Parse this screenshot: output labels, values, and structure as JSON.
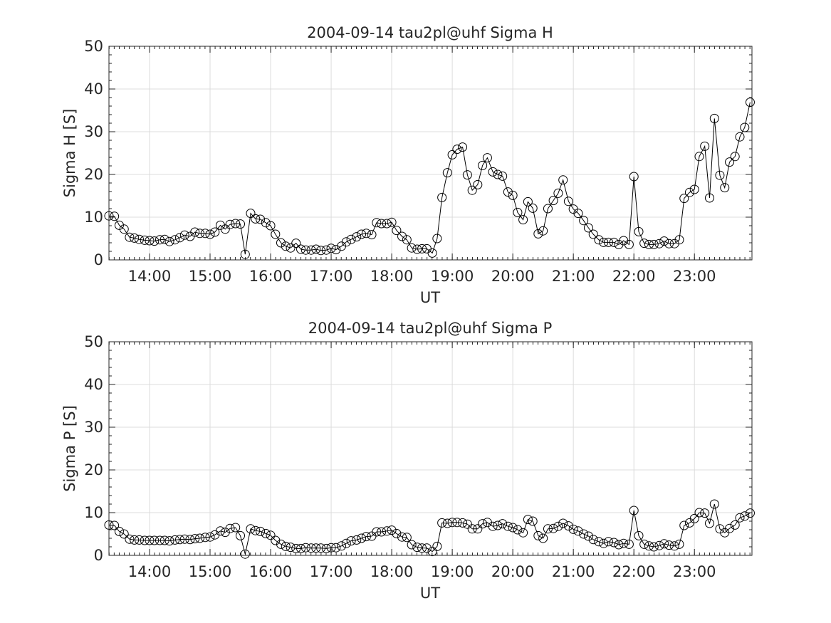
{
  "chart_data": [
    {
      "type": "line",
      "title": "2004-09-14  tau2pl@uhf Sigma H",
      "xlabel": "UT",
      "ylabel": "Sigma H [S]",
      "xlim": [
        13.33,
        23.95
      ],
      "ylim": [
        0,
        50
      ],
      "xticks": [
        14,
        15,
        16,
        17,
        18,
        19,
        20,
        21,
        22,
        23
      ],
      "xtick_labels": [
        "14:00",
        "15:00",
        "16:00",
        "17:00",
        "18:00",
        "19:00",
        "20:00",
        "21:00",
        "22:00",
        "23:00"
      ],
      "yticks": [
        0,
        10,
        20,
        30,
        40,
        50
      ],
      "grid": true,
      "marker": "open-circle",
      "line_color": "#000000",
      "series": [
        {
          "x": [
            13.33,
            13.42,
            13.5,
            13.58,
            13.67,
            13.75,
            13.83,
            13.92,
            14.0,
            14.08,
            14.17,
            14.25,
            14.33,
            14.42,
            14.5,
            14.58,
            14.67,
            14.75,
            14.83,
            14.92,
            15.0,
            15.08,
            15.17,
            15.25,
            15.33,
            15.42,
            15.5,
            15.58,
            15.67,
            15.75,
            15.83,
            15.92,
            16.0,
            16.08,
            16.17,
            16.25,
            16.33,
            16.42,
            16.5,
            16.58,
            16.67,
            16.75,
            16.83,
            16.92,
            17.0,
            17.08,
            17.17,
            17.25,
            17.33,
            17.42,
            17.5,
            17.58,
            17.67,
            17.75,
            17.83,
            17.92,
            18.0,
            18.08,
            18.17,
            18.25,
            18.33,
            18.42,
            18.5,
            18.58,
            18.67,
            18.75,
            18.83,
            18.92,
            19.0,
            19.08,
            19.17,
            19.25,
            19.33,
            19.42,
            19.5,
            19.58,
            19.67,
            19.75,
            19.83,
            19.92,
            20.0,
            20.08,
            20.17,
            20.25,
            20.33,
            20.42,
            20.5,
            20.58,
            20.67,
            20.75,
            20.83,
            20.92,
            21.0,
            21.08,
            21.17,
            21.25,
            21.33,
            21.42,
            21.5,
            21.58,
            21.67,
            21.75,
            21.83,
            21.92,
            22.0,
            22.08,
            22.17,
            22.25,
            22.33,
            22.42,
            22.5,
            22.58,
            22.67,
            22.75,
            22.83,
            22.92,
            23.0,
            23.08,
            23.17,
            23.25,
            23.33,
            23.42,
            23.5,
            23.58,
            23.67,
            23.75,
            23.83,
            23.92
          ],
          "values": [
            10.3,
            10.2,
            8.1,
            7.2,
            5.3,
            5.1,
            4.8,
            4.6,
            4.5,
            4.4,
            4.7,
            4.8,
            4.3,
            4.7,
            5.2,
            5.8,
            5.5,
            6.5,
            6.2,
            6.2,
            6.0,
            6.5,
            8.1,
            7.2,
            8.3,
            8.5,
            8.4,
            1.3,
            10.9,
            9.6,
            9.5,
            8.7,
            8.0,
            6.0,
            4.0,
            3.2,
            2.8,
            3.9,
            2.5,
            2.3,
            2.3,
            2.5,
            2.2,
            2.3,
            2.7,
            2.4,
            3.2,
            4.2,
            4.8,
            5.4,
            6.0,
            6.2,
            5.9,
            8.7,
            8.5,
            8.5,
            8.8,
            6.9,
            5.5,
            4.7,
            2.8,
            2.5,
            2.6,
            2.6,
            1.6,
            5.0,
            14.6,
            20.4,
            24.6,
            25.9,
            26.4,
            19.9,
            16.3,
            17.6,
            22.1,
            23.9,
            20.6,
            20.0,
            19.6,
            15.9,
            15.1,
            11.1,
            9.4,
            13.6,
            12.1,
            6.1,
            6.8,
            12.0,
            13.9,
            15.6,
            18.7,
            13.7,
            11.9,
            10.9,
            9.2,
            7.5,
            6.0,
            4.7,
            4.1,
            4.1,
            4.1,
            3.6,
            4.5,
            3.6,
            19.5,
            6.6,
            3.9,
            3.6,
            3.6,
            3.8,
            4.4,
            3.8,
            3.8,
            4.7,
            14.4,
            15.8,
            16.5,
            24.2,
            26.6,
            14.5,
            33.1,
            19.8,
            16.9,
            22.9,
            24.2,
            28.8,
            31.0,
            36.9
          ]
        }
      ]
    },
    {
      "type": "line",
      "title": "2004-09-14  tau2pl@uhf Sigma P",
      "xlabel": "UT",
      "ylabel": "Sigma P [S]",
      "xlim": [
        13.33,
        23.95
      ],
      "ylim": [
        0,
        50
      ],
      "xticks": [
        14,
        15,
        16,
        17,
        18,
        19,
        20,
        21,
        22,
        23
      ],
      "xtick_labels": [
        "14:00",
        "15:00",
        "16:00",
        "17:00",
        "18:00",
        "19:00",
        "20:00",
        "21:00",
        "22:00",
        "23:00"
      ],
      "yticks": [
        0,
        10,
        20,
        30,
        40,
        50
      ],
      "grid": true,
      "marker": "open-circle",
      "line_color": "#000000",
      "series": [
        {
          "x": [
            13.33,
            13.42,
            13.5,
            13.58,
            13.67,
            13.75,
            13.83,
            13.92,
            14.0,
            14.08,
            14.17,
            14.25,
            14.33,
            14.42,
            14.5,
            14.58,
            14.67,
            14.75,
            14.83,
            14.92,
            15.0,
            15.08,
            15.17,
            15.25,
            15.33,
            15.42,
            15.5,
            15.58,
            15.67,
            15.75,
            15.83,
            15.92,
            16.0,
            16.08,
            16.17,
            16.25,
            16.33,
            16.42,
            16.5,
            16.58,
            16.67,
            16.75,
            16.83,
            16.92,
            17.0,
            17.08,
            17.17,
            17.25,
            17.33,
            17.42,
            17.5,
            17.58,
            17.67,
            17.75,
            17.83,
            17.92,
            18.0,
            18.08,
            18.17,
            18.25,
            18.33,
            18.42,
            18.5,
            18.58,
            18.67,
            18.75,
            18.83,
            18.92,
            19.0,
            19.08,
            19.17,
            19.25,
            19.33,
            19.42,
            19.5,
            19.58,
            19.67,
            19.75,
            19.83,
            19.92,
            20.0,
            20.08,
            20.17,
            20.25,
            20.33,
            20.42,
            20.5,
            20.58,
            20.67,
            20.75,
            20.83,
            20.92,
            21.0,
            21.08,
            21.17,
            21.25,
            21.33,
            21.42,
            21.5,
            21.58,
            21.67,
            21.75,
            21.83,
            21.92,
            22.0,
            22.08,
            22.17,
            22.25,
            22.33,
            22.42,
            22.5,
            22.58,
            22.67,
            22.75,
            22.83,
            22.92,
            23.0,
            23.08,
            23.17,
            23.25,
            23.33,
            23.42,
            23.5,
            23.58,
            23.67,
            23.75,
            23.83,
            23.92
          ],
          "values": [
            7.1,
            7.0,
            5.6,
            5.0,
            3.8,
            3.6,
            3.6,
            3.5,
            3.5,
            3.5,
            3.5,
            3.5,
            3.4,
            3.6,
            3.7,
            3.8,
            3.7,
            3.9,
            4.0,
            4.2,
            4.3,
            4.8,
            5.7,
            5.4,
            6.3,
            6.5,
            4.6,
            0.3,
            6.2,
            5.8,
            5.6,
            5.1,
            4.7,
            3.5,
            2.6,
            2.1,
            1.9,
            1.6,
            1.6,
            1.8,
            1.7,
            1.7,
            1.7,
            1.6,
            1.8,
            1.8,
            2.2,
            2.8,
            3.4,
            3.6,
            4.0,
            4.4,
            4.5,
            5.5,
            5.5,
            5.7,
            5.9,
            5.1,
            4.3,
            4.2,
            2.5,
            1.9,
            1.7,
            1.7,
            0.9,
            2.1,
            7.6,
            7.5,
            7.7,
            7.7,
            7.6,
            7.3,
            6.2,
            6.2,
            7.4,
            7.7,
            6.8,
            7.0,
            7.4,
            6.8,
            6.5,
            6.0,
            5.3,
            8.4,
            8.0,
            4.6,
            4.0,
            6.2,
            6.3,
            6.8,
            7.5,
            6.9,
            6.1,
            5.7,
            5.0,
            4.5,
            3.7,
            3.2,
            2.8,
            3.2,
            3.0,
            2.5,
            2.8,
            2.6,
            10.5,
            4.6,
            2.6,
            2.2,
            2.0,
            2.3,
            2.7,
            2.4,
            2.2,
            2.6,
            7.0,
            7.6,
            8.6,
            10.0,
            9.9,
            7.5,
            12.0,
            6.2,
            5.3,
            6.3,
            7.1,
            8.8,
            9.2,
            9.9
          ]
        }
      ]
    }
  ]
}
